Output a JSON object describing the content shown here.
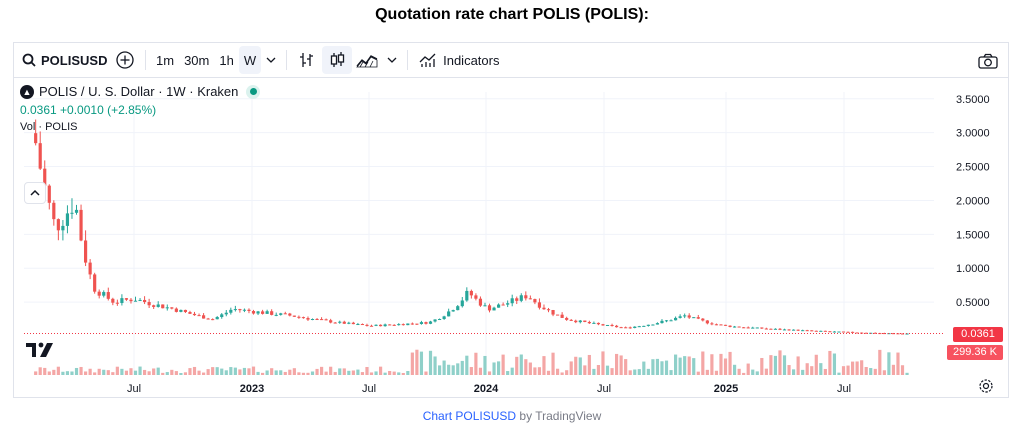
{
  "page_title": "Quotation rate chart POLIS (POLIS):",
  "toolbar": {
    "symbol": "POLISUSD",
    "intervals": [
      "1m",
      "30m",
      "1h",
      "W"
    ],
    "active_interval": "W",
    "indicators_label": "Indicators"
  },
  "legend": {
    "title": "POLIS / U. S. Dollar · 1W · Kraken",
    "price_line": "0.0361  +0.0010 (+2.85%)",
    "volume_label": "Vol · POLIS"
  },
  "price_axis": {
    "ticks": [
      "3.5000",
      "3.0000",
      "2.5000",
      "2.0000",
      "1.5000",
      "1.0000",
      "0.5000"
    ],
    "tick_values": [
      3.5,
      3.0,
      2.5,
      2.0,
      1.5,
      1.0,
      0.5
    ],
    "last_price_badge": "0.0361",
    "volume_badge": "299.36 K"
  },
  "time_axis": {
    "labels": [
      "Jul",
      "2023",
      "Jul",
      "2024",
      "Jul",
      "2025",
      "Jul"
    ],
    "bold": [
      false,
      true,
      false,
      true,
      false,
      true,
      false
    ]
  },
  "colors": {
    "up": "#26a69a",
    "down": "#ef5350",
    "up_volume": "#8fd0c9",
    "down_volume": "#f4a6a5",
    "badge_price": "#f23645",
    "badge_volume": "#f7525f"
  },
  "footer": {
    "link_text": "Chart POLISUSD",
    "suffix": " by TradingView"
  },
  "chart_data": {
    "type": "candlestick",
    "interval": "1W",
    "y_range": [
      0,
      3.6
    ],
    "approximate_close_path": [
      {
        "x": "2022-02",
        "close": 2.85
      },
      {
        "x": "2022-03",
        "close": 1.6
      },
      {
        "x": "2022-04",
        "close": 2.0
      },
      {
        "x": "2022-05",
        "close": 0.7
      },
      {
        "x": "2022-06",
        "close": 0.5
      },
      {
        "x": "2022-07",
        "close": 0.55
      },
      {
        "x": "2022-09",
        "close": 0.4
      },
      {
        "x": "2022-11",
        "close": 0.25
      },
      {
        "x": "2022-12",
        "close": 0.4
      },
      {
        "x": "2023-03",
        "close": 0.3
      },
      {
        "x": "2023-07",
        "close": 0.15
      },
      {
        "x": "2023-10",
        "close": 0.2
      },
      {
        "x": "2023-12",
        "close": 0.65
      },
      {
        "x": "2024-01",
        "close": 0.4
      },
      {
        "x": "2024-03",
        "close": 0.6
      },
      {
        "x": "2024-05",
        "close": 0.25
      },
      {
        "x": "2024-08",
        "close": 0.12
      },
      {
        "x": "2024-11",
        "close": 0.3
      },
      {
        "x": "2025-01",
        "close": 0.15
      },
      {
        "x": "2025-06",
        "close": 0.07
      },
      {
        "x": "2025-10",
        "close": 0.036
      }
    ],
    "last_close": 0.0361,
    "change": 0.001,
    "change_pct": 2.85,
    "last_volume": "299.36 K"
  }
}
